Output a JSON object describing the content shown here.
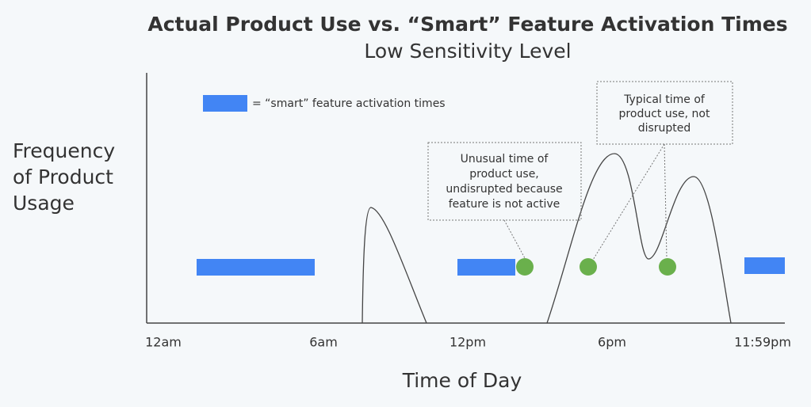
{
  "header": {
    "title": "Actual Product Use vs. “Smart” Feature Activation Times",
    "subtitle": "Low Sensitivity Level"
  },
  "legend": {
    "label": "= “smart” feature activation times"
  },
  "y_axis": {
    "label_lines": [
      "Frequency",
      "of Product",
      "Usage"
    ]
  },
  "x_axis": {
    "ticks": [
      "12am",
      "6am",
      "12pm",
      "6pm",
      "11:59pm"
    ],
    "title": "Time of Day"
  },
  "annotations": [
    {
      "lines": [
        "Unusual time of",
        "product use,",
        "undisrupted because",
        "feature is not active"
      ]
    },
    {
      "lines": [
        "Typical time of",
        "product use, not",
        "disrupted"
      ]
    }
  ]
}
